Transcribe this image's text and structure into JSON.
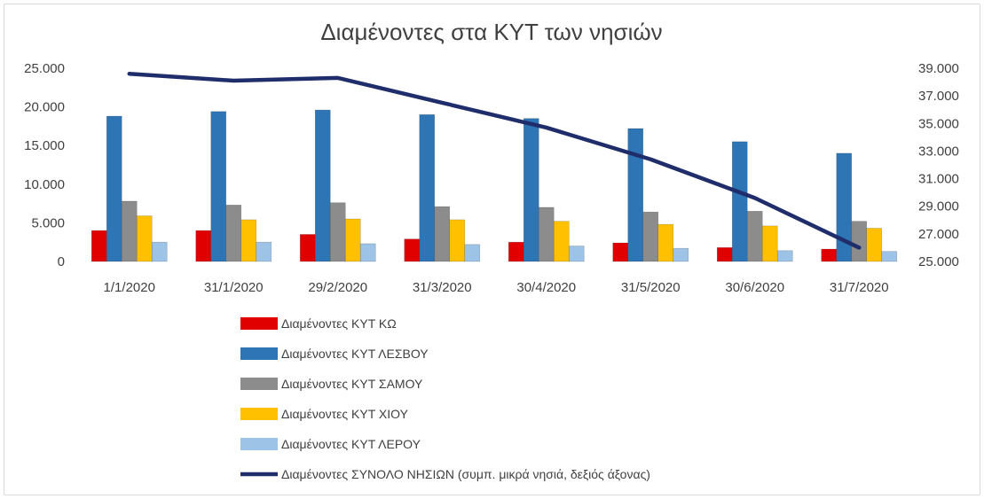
{
  "chart_data": {
    "type": "bar",
    "title": "Διαμένοντες στα ΚΥΤ των νησιών",
    "categories": [
      "1/1/2020",
      "31/1/2020",
      "29/2/2020",
      "31/3/2020",
      "30/4/2020",
      "31/5/2020",
      "30/6/2020",
      "31/7/2020"
    ],
    "ylim": [
      0,
      25000
    ],
    "y_ticks": [
      "0",
      "5.000",
      "10.000",
      "15.000",
      "20.000",
      "25.000"
    ],
    "y2lim": [
      25000,
      39000
    ],
    "y2_ticks": [
      "25.000",
      "27.000",
      "29.000",
      "31.000",
      "33.000",
      "35.000",
      "37.000",
      "39.000"
    ],
    "grid": false,
    "legend_position": "bottom",
    "series": [
      {
        "name": "Διαμένοντες ΚΥΤ ΚΩ",
        "type": "bar",
        "axis": "left",
        "color": "#e00000",
        "values": [
          4000,
          4000,
          3500,
          2900,
          2500,
          2400,
          1800,
          1600
        ]
      },
      {
        "name": "Διαμένοντες ΚΥΤ ΛΕΣΒΟΥ",
        "type": "bar",
        "axis": "left",
        "color": "#2e75b6",
        "values": [
          18800,
          19400,
          19600,
          19000,
          18500,
          17200,
          15500,
          14000
        ]
      },
      {
        "name": "Διαμένοντες ΚΥΤ ΣΑΜΟΥ",
        "type": "bar",
        "axis": "left",
        "color": "#8c8c8c",
        "values": [
          7800,
          7300,
          7600,
          7100,
          7000,
          6400,
          6500,
          5200
        ]
      },
      {
        "name": "Διαμένοντες ΚΥΤ ΧΙΟΥ",
        "type": "bar",
        "axis": "left",
        "color": "#ffc000",
        "values": [
          5900,
          5400,
          5500,
          5400,
          5200,
          4800,
          4600,
          4300
        ]
      },
      {
        "name": "Διαμένοντες ΚΥΤ ΛΕΡΟΥ",
        "type": "bar",
        "axis": "left",
        "color": "#9dc3e6",
        "values": [
          2500,
          2500,
          2300,
          2200,
          2000,
          1700,
          1400,
          1300
        ]
      },
      {
        "name": "Διαμένοντες ΣΥΝΟΛΟ ΝΗΣΙΩΝ (συμπ. μικρά νησιά, δεξιός άξονας)",
        "type": "line",
        "axis": "right",
        "color": "#1f2d6b",
        "values": [
          38600,
          38100,
          38300,
          36500,
          34700,
          32400,
          29600,
          26000
        ]
      }
    ]
  }
}
